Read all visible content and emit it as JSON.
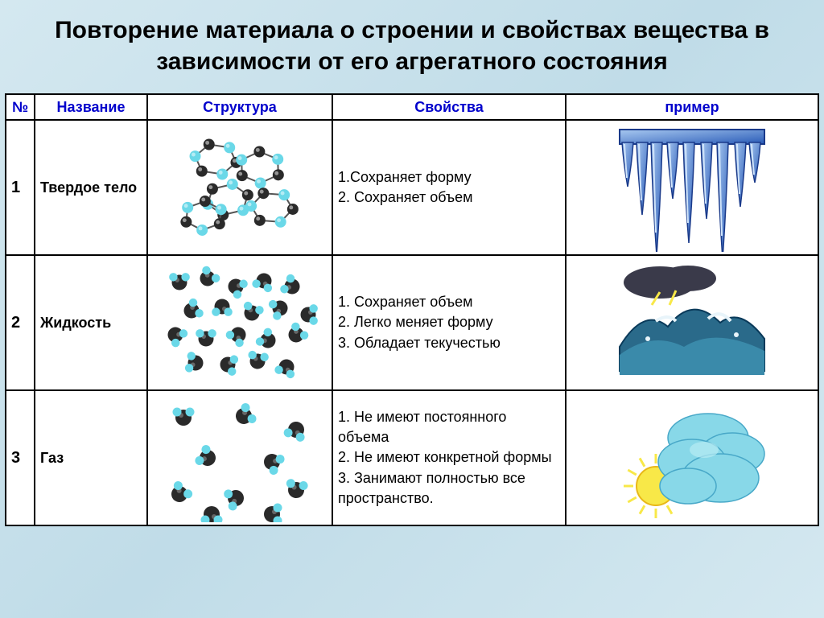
{
  "title": "Повторение материала о строении и свойствах вещества в зависимости от его агрегатного состояния",
  "headers": {
    "num": "№",
    "name": "Название",
    "struct": "Структура",
    "prop": "Свойства",
    "ex": "пример"
  },
  "rows": [
    {
      "num": "1",
      "name": "Твердое тело",
      "props": "1.Сохраняет форму\n2. Сохраняет объем",
      "structure_type": "solid",
      "example_type": "icicles"
    },
    {
      "num": "2",
      "name": "Жидкость",
      "props": "1. Сохраняет объем\n2. Легко меняет форму\n3. Обладает текучестью",
      "structure_type": "liquid",
      "example_type": "wave"
    },
    {
      "num": "3",
      "name": "Газ",
      "props": "1. Не имеют постоянного объема\n2. Не имеют конкретной формы\n3. Занимают полностью все пространство.",
      "structure_type": "gas",
      "example_type": "cloud_sun"
    }
  ],
  "colors": {
    "header_text": "#0000cc",
    "molecule_dark": "#2a2a2a",
    "molecule_light": "#6ad8e8",
    "molecule_highlight": "#b8f0f8",
    "icicle_fill": "#4a7cd8",
    "icicle_light": "#a8c8f0",
    "water_dark": "#1a4a6a",
    "water_mid": "#3a7a9a",
    "water_foam": "#e8f4fa",
    "storm_cloud": "#3a3a4a",
    "cloud_fill": "#88d8e8",
    "cloud_shadow": "#58b8d0",
    "sun_fill": "#f8e848",
    "sun_stroke": "#e8b818",
    "background": "#d4e8f0"
  }
}
